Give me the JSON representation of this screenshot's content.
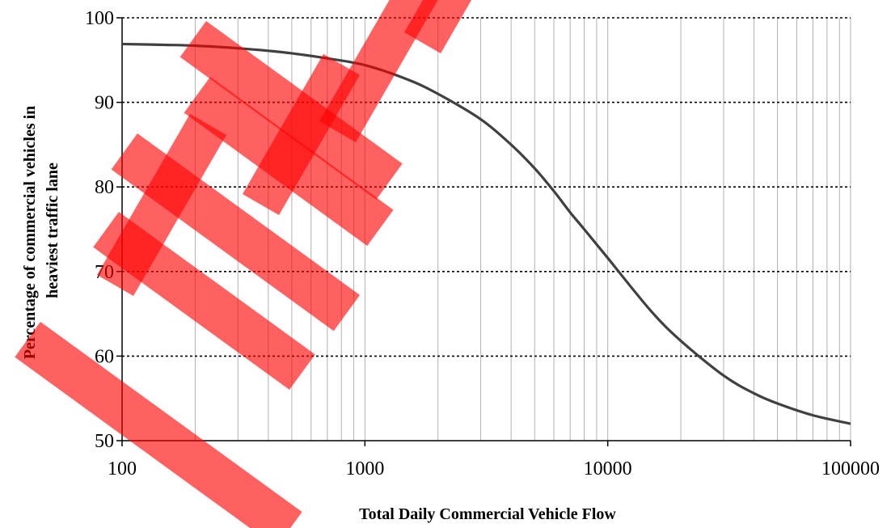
{
  "chart_data": {
    "type": "line",
    "title": "",
    "xlabel": "Total Daily Commercial Vehicle Flow",
    "ylabel_lines": [
      "Percentage of commercial vehicles in",
      "heaviest traffic lane"
    ],
    "x_scale": "log",
    "xlim": [
      100,
      100000
    ],
    "ylim": [
      50,
      100
    ],
    "x_ticks": [
      100,
      1000,
      10000,
      100000
    ],
    "x_tick_labels": [
      "100",
      "1000",
      "10000",
      "100000"
    ],
    "y_ticks": [
      50,
      60,
      70,
      80,
      90,
      100
    ],
    "y_tick_labels": [
      "50",
      "60",
      "70",
      "80",
      "90",
      "100"
    ],
    "grid": {
      "x_minor_log": true,
      "y_major": "dotted"
    },
    "legend": "none",
    "series": [
      {
        "color": "#404040",
        "x": [
          100,
          150,
          200,
          300,
          400,
          500,
          700,
          1000,
          1500,
          2000,
          3000,
          4000,
          5000,
          6000,
          7000,
          8000,
          10000,
          15000,
          20000,
          30000,
          40000,
          50000,
          70000,
          100000
        ],
        "y": [
          96.9,
          96.8,
          96.7,
          96.4,
          96.1,
          95.8,
          95.2,
          94.4,
          92.7,
          91.0,
          88.0,
          85.0,
          82.2,
          79.5,
          77.0,
          75.0,
          71.6,
          65.4,
          61.8,
          57.7,
          55.6,
          54.4,
          53.0,
          52.0
        ]
      }
    ]
  },
  "watermark": {
    "text": "WITH",
    "color": "#ff0000"
  }
}
